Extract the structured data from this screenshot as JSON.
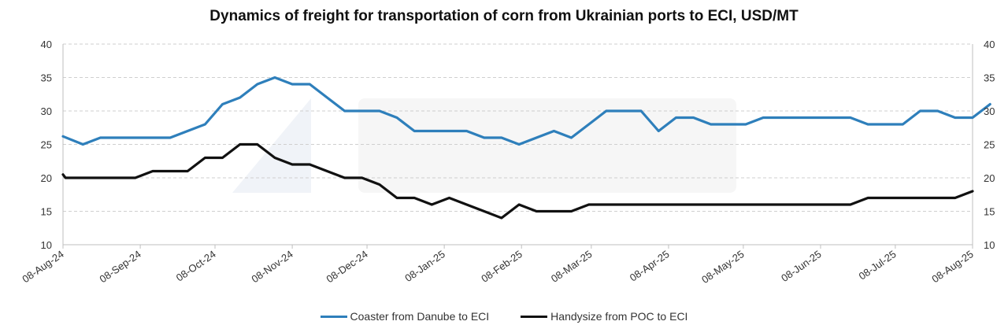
{
  "chart_data": {
    "type": "line",
    "title": "Dynamics of freight for transportation of corn from Ukrainian ports to ECI, USD/MT",
    "xlabel": "",
    "ylabel": "",
    "ylim": [
      10,
      40
    ],
    "yticks": [
      "10",
      "15",
      "20",
      "25",
      "30",
      "35",
      "40"
    ],
    "secondary_yticks": [
      "10",
      "15",
      "20",
      "25",
      "30",
      "35",
      "40"
    ],
    "xtick_labels": [
      "08-Aug-24",
      "08-Sep-24",
      "08-Oct-24",
      "08-Nov-24",
      "08-Dec-24",
      "08-Jan-25",
      "08-Feb-25",
      "08-Mar-25",
      "08-Apr-25",
      "08-May-25",
      "08-Jun-25",
      "08-Jul-25",
      "08-Aug-25"
    ],
    "grid": true,
    "legend_position": "bottom",
    "watermark": "ASAP",
    "series": [
      {
        "name": "Coaster from Danube to ECI",
        "color": "#2E7FBB",
        "points": [
          [
            "08-Aug-24",
            26.2
          ],
          [
            "16-Aug-24",
            25
          ],
          [
            "23-Aug-24",
            26
          ],
          [
            "30-Aug-24",
            26
          ],
          [
            "06-Sep-24",
            26
          ],
          [
            "13-Sep-24",
            26
          ],
          [
            "20-Sep-24",
            26
          ],
          [
            "27-Sep-24",
            27
          ],
          [
            "04-Oct-24",
            28
          ],
          [
            "11-Oct-24",
            31
          ],
          [
            "18-Oct-24",
            32
          ],
          [
            "25-Oct-24",
            34
          ],
          [
            "01-Nov-24",
            35
          ],
          [
            "08-Nov-24",
            34
          ],
          [
            "15-Nov-24",
            34
          ],
          [
            "22-Nov-24",
            32
          ],
          [
            "29-Nov-24",
            30
          ],
          [
            "06-Dec-24",
            30
          ],
          [
            "13-Dec-24",
            30
          ],
          [
            "20-Dec-24",
            29
          ],
          [
            "27-Dec-24",
            27
          ],
          [
            "03-Jan-25",
            27
          ],
          [
            "10-Jan-25",
            27
          ],
          [
            "17-Jan-25",
            27
          ],
          [
            "24-Jan-25",
            26
          ],
          [
            "31-Jan-25",
            26
          ],
          [
            "07-Feb-25",
            25
          ],
          [
            "14-Feb-25",
            26
          ],
          [
            "21-Feb-25",
            27
          ],
          [
            "28-Feb-25",
            26
          ],
          [
            "07-Mar-25",
            28
          ],
          [
            "14-Mar-25",
            30
          ],
          [
            "21-Mar-25",
            30
          ],
          [
            "28-Mar-25",
            30
          ],
          [
            "04-Apr-25",
            27
          ],
          [
            "11-Apr-25",
            29
          ],
          [
            "18-Apr-25",
            29
          ],
          [
            "25-Apr-25",
            28
          ],
          [
            "02-May-25",
            28
          ],
          [
            "09-May-25",
            28
          ],
          [
            "16-May-25",
            29
          ],
          [
            "23-May-25",
            29
          ],
          [
            "30-May-25",
            29
          ],
          [
            "06-Jun-25",
            29
          ],
          [
            "13-Jun-25",
            29
          ],
          [
            "20-Jun-25",
            29
          ],
          [
            "27-Jun-25",
            28
          ],
          [
            "04-Jul-25",
            28
          ],
          [
            "11-Jul-25",
            28
          ],
          [
            "18-Jul-25",
            30
          ],
          [
            "25-Jul-25",
            30
          ],
          [
            "01-Aug-25",
            29
          ],
          [
            "08-Aug-25",
            29
          ],
          [
            "15-Aug-25",
            31
          ]
        ]
      },
      {
        "name": "Handysize from POC to ECI",
        "color": "#111111",
        "points": [
          [
            "08-Aug-24",
            20.5
          ],
          [
            "09-Aug-24",
            20
          ],
          [
            "16-Aug-24",
            20
          ],
          [
            "23-Aug-24",
            20
          ],
          [
            "30-Aug-24",
            20
          ],
          [
            "06-Sep-24",
            20
          ],
          [
            "13-Sep-24",
            21
          ],
          [
            "20-Sep-24",
            21
          ],
          [
            "27-Sep-24",
            21
          ],
          [
            "04-Oct-24",
            23
          ],
          [
            "11-Oct-24",
            23
          ],
          [
            "18-Oct-24",
            25
          ],
          [
            "25-Oct-24",
            25
          ],
          [
            "01-Nov-24",
            23
          ],
          [
            "08-Nov-24",
            22
          ],
          [
            "15-Nov-24",
            22
          ],
          [
            "22-Nov-24",
            21
          ],
          [
            "29-Nov-24",
            20
          ],
          [
            "06-Dec-24",
            20
          ],
          [
            "13-Dec-24",
            19
          ],
          [
            "20-Dec-24",
            17
          ],
          [
            "27-Dec-24",
            17
          ],
          [
            "03-Jan-25",
            16
          ],
          [
            "10-Jan-25",
            17
          ],
          [
            "17-Jan-25",
            16
          ],
          [
            "24-Jan-25",
            15
          ],
          [
            "31-Jan-25",
            14
          ],
          [
            "07-Feb-25",
            16
          ],
          [
            "14-Feb-25",
            15
          ],
          [
            "21-Feb-25",
            15
          ],
          [
            "28-Feb-25",
            15
          ],
          [
            "07-Mar-25",
            16
          ],
          [
            "14-Mar-25",
            16
          ],
          [
            "21-Mar-25",
            16
          ],
          [
            "28-Mar-25",
            16
          ],
          [
            "04-Apr-25",
            16
          ],
          [
            "11-Apr-25",
            16
          ],
          [
            "18-Apr-25",
            16
          ],
          [
            "25-Apr-25",
            16
          ],
          [
            "02-May-25",
            16
          ],
          [
            "09-May-25",
            16
          ],
          [
            "16-May-25",
            16
          ],
          [
            "23-May-25",
            16
          ],
          [
            "30-May-25",
            16
          ],
          [
            "06-Jun-25",
            16
          ],
          [
            "13-Jun-25",
            16
          ],
          [
            "20-Jun-25",
            16
          ],
          [
            "27-Jun-25",
            17
          ],
          [
            "04-Jul-25",
            17
          ],
          [
            "11-Jul-25",
            17
          ],
          [
            "18-Jul-25",
            17
          ],
          [
            "25-Jul-25",
            17
          ],
          [
            "01-Aug-25",
            17
          ],
          [
            "08-Aug-25",
            18
          ]
        ]
      }
    ]
  }
}
